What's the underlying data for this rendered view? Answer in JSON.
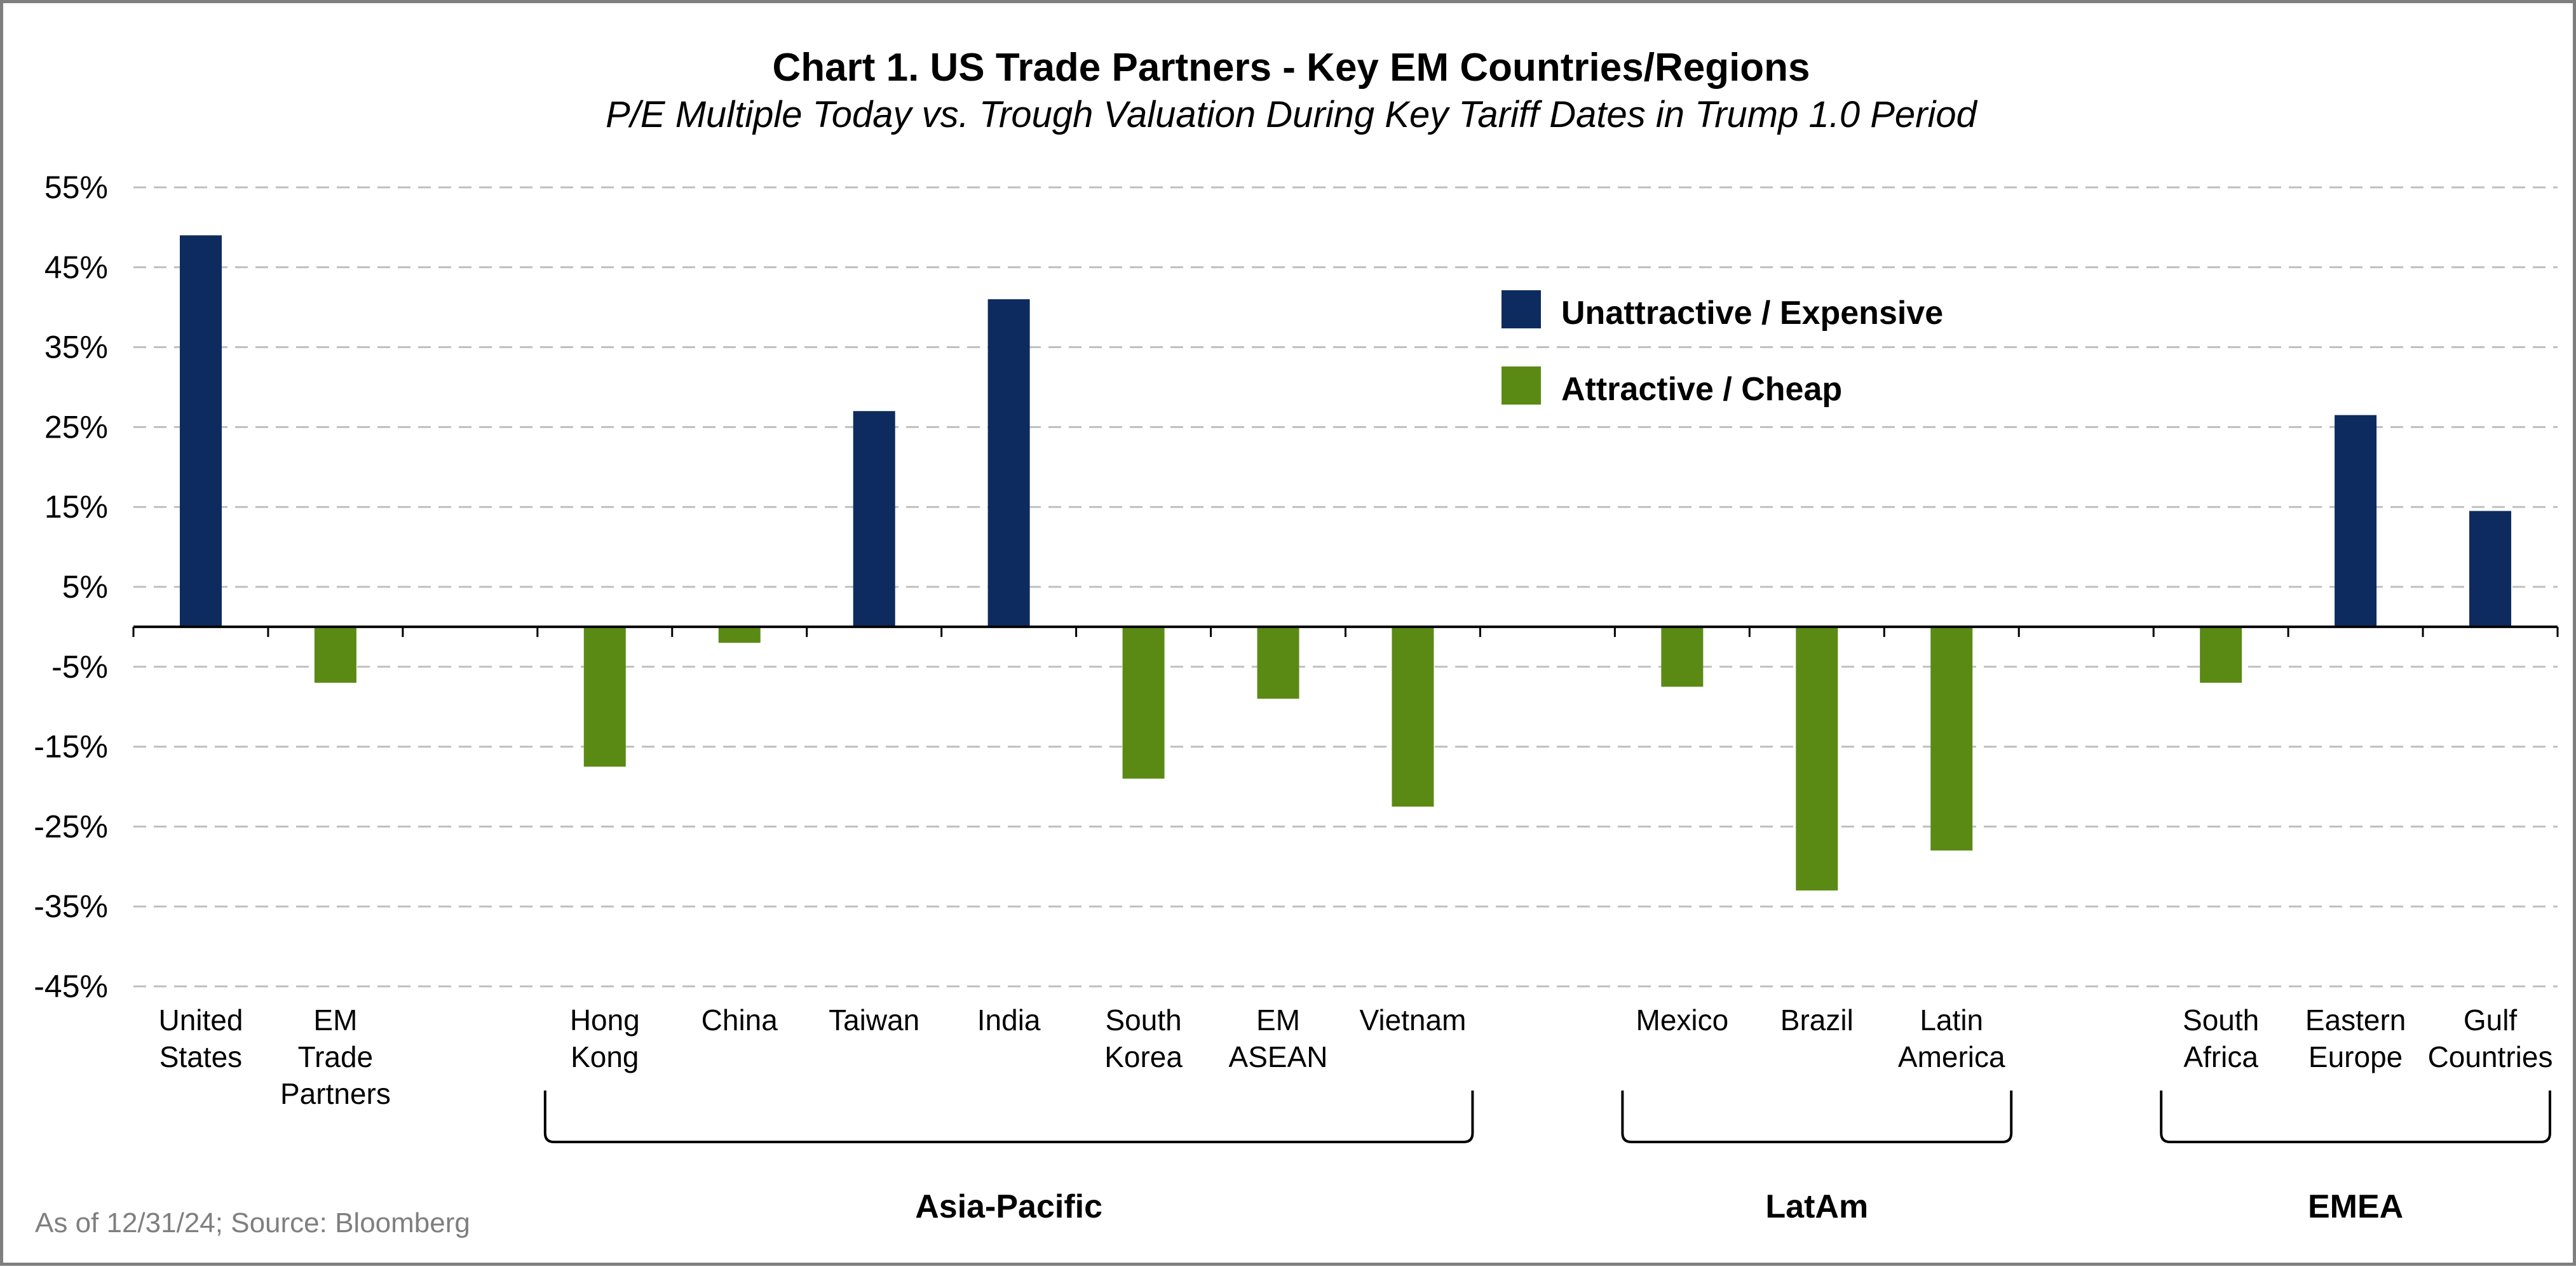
{
  "chart_data": {
    "type": "bar",
    "title": "Chart 1. US Trade Partners - Key EM Countries/Regions",
    "subtitle": "P/E Multiple Today vs. Trough Valuation During Key Tariff Dates in Trump 1.0 Period",
    "source": "As of 12/31/24; Source:  Bloomberg",
    "ylim": [
      -45,
      55
    ],
    "yticks": [
      "55%",
      "45%",
      "35%",
      "25%",
      "15%",
      "5%",
      "-5%",
      "-15%",
      "-25%",
      "-35%",
      "-45%"
    ],
    "ytick_values": [
      55,
      45,
      35,
      25,
      15,
      5,
      -5,
      -15,
      -25,
      -35,
      -45
    ],
    "grid": "dashed horizontal",
    "legend": {
      "placement": "upper-center-right",
      "entries": [
        {
          "label": "Unattractive / Expensive",
          "color": "#0d2b5e"
        },
        {
          "label": "Attractive / Cheap",
          "color": "#5a8a14"
        }
      ]
    },
    "categories": [
      [
        "United",
        "States"
      ],
      [
        "EM",
        "Trade",
        "Partners"
      ],
      [],
      [
        "Hong",
        "Kong"
      ],
      [
        "China"
      ],
      [
        "Taiwan"
      ],
      [
        "India"
      ],
      [
        "South",
        "Korea"
      ],
      [
        "EM",
        "ASEAN"
      ],
      [
        "Vietnam"
      ],
      [],
      [
        "Mexico"
      ],
      [
        "Brazil"
      ],
      [
        "Latin",
        "America"
      ],
      [],
      [
        "South",
        "Africa"
      ],
      [
        "Eastern",
        "Europe"
      ],
      [
        "Gulf",
        "Countries"
      ]
    ],
    "values": [
      49,
      -7,
      null,
      -17.5,
      -2,
      27,
      41,
      -19,
      -9,
      -22.5,
      null,
      -7.5,
      -33,
      -28,
      null,
      -7,
      26.5,
      14.5
    ],
    "groups": [
      {
        "label": "Asia-Pacific",
        "from": 3,
        "to": 9
      },
      {
        "label": "LatAm",
        "from": 11,
        "to": 13
      },
      {
        "label": "EMEA",
        "from": 15,
        "to": 17
      }
    ]
  }
}
